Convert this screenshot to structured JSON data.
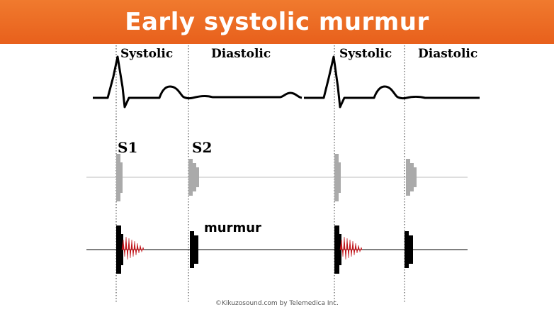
{
  "title": "Early systolic murmur",
  "phases": [
    "Systolic",
    "Diastolic",
    "Systolic",
    "Diastolic"
  ],
  "sounds": {
    "s1": "S1",
    "s2": "S2"
  },
  "murmur_label": "murmur",
  "credit": "©Kikuzosound.com by Telemedica Inc.",
  "colors": {
    "banner": "#e8601c",
    "ecg": "#000000",
    "normal_sounds": "#aaaaaa",
    "murmur": "#c0161c",
    "heart_sounds": "#000000"
  }
}
